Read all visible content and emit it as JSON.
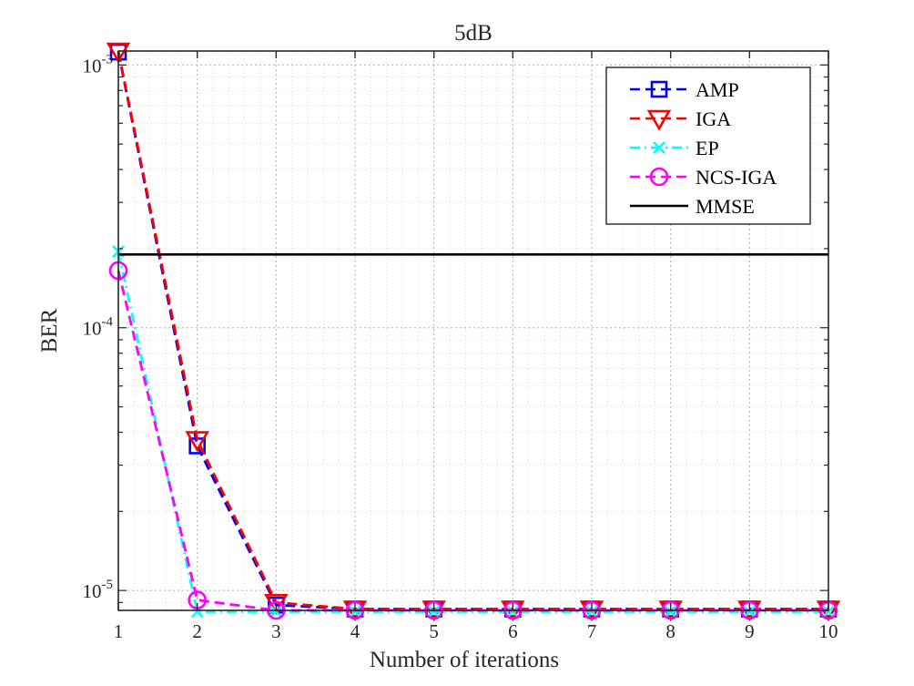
{
  "chart_data": {
    "type": "line",
    "title": "5dB",
    "xlabel": "Number of iterations",
    "ylabel": "BER",
    "yscale": "log",
    "xlim": [
      1,
      10
    ],
    "ylim": [
      8.4e-06,
      0.00113
    ],
    "x": [
      1,
      2,
      3,
      4,
      5,
      6,
      7,
      8,
      9,
      10
    ],
    "x_ticks": [
      "1",
      "2",
      "3",
      "4",
      "5",
      "6",
      "7",
      "8",
      "9",
      "10"
    ],
    "y_ticks": [
      {
        "value": 0.001,
        "base": "10",
        "exp": "-3"
      },
      {
        "value": 0.0001,
        "base": "10",
        "exp": "-4"
      },
      {
        "value": 1e-05,
        "base": "10",
        "exp": "-5"
      }
    ],
    "grid": true,
    "legend_position": "top-right",
    "series": [
      {
        "name": "AMP",
        "color": "#0000ff",
        "marker": "square",
        "dash": "dashed",
        "values": [
          0.00112,
          3.55e-05,
          8.8e-06,
          8.5e-06,
          8.5e-06,
          8.5e-06,
          8.5e-06,
          8.5e-06,
          8.5e-06,
          8.5e-06
        ]
      },
      {
        "name": "IGA",
        "color": "#ff0000",
        "marker": "triangle-down",
        "dash": "dashed",
        "values": [
          0.00113,
          3.75e-05,
          9e-06,
          8.5e-06,
          8.5e-06,
          8.5e-06,
          8.5e-06,
          8.5e-06,
          8.5e-06,
          8.5e-06
        ]
      },
      {
        "name": "EP",
        "color": "#00ffff",
        "marker": "x",
        "dash": "dashdot",
        "values": [
          0.000195,
          8.3e-06,
          8.3e-06,
          8.3e-06,
          8.3e-06,
          8.3e-06,
          8.3e-06,
          8.3e-06,
          8.3e-06,
          8.3e-06
        ]
      },
      {
        "name": "NCS-IGA",
        "color": "#ff00ff",
        "marker": "circle",
        "dash": "dashed",
        "values": [
          0.000165,
          9.2e-06,
          8.4e-06,
          8.4e-06,
          8.4e-06,
          8.4e-06,
          8.4e-06,
          8.4e-06,
          8.4e-06,
          8.4e-06
        ]
      },
      {
        "name": "MMSE",
        "color": "#000000",
        "marker": "none",
        "dash": "solid",
        "values": [
          0.00019,
          0.00019,
          0.00019,
          0.00019,
          0.00019,
          0.00019,
          0.00019,
          0.00019,
          0.00019,
          0.00019
        ]
      }
    ]
  }
}
